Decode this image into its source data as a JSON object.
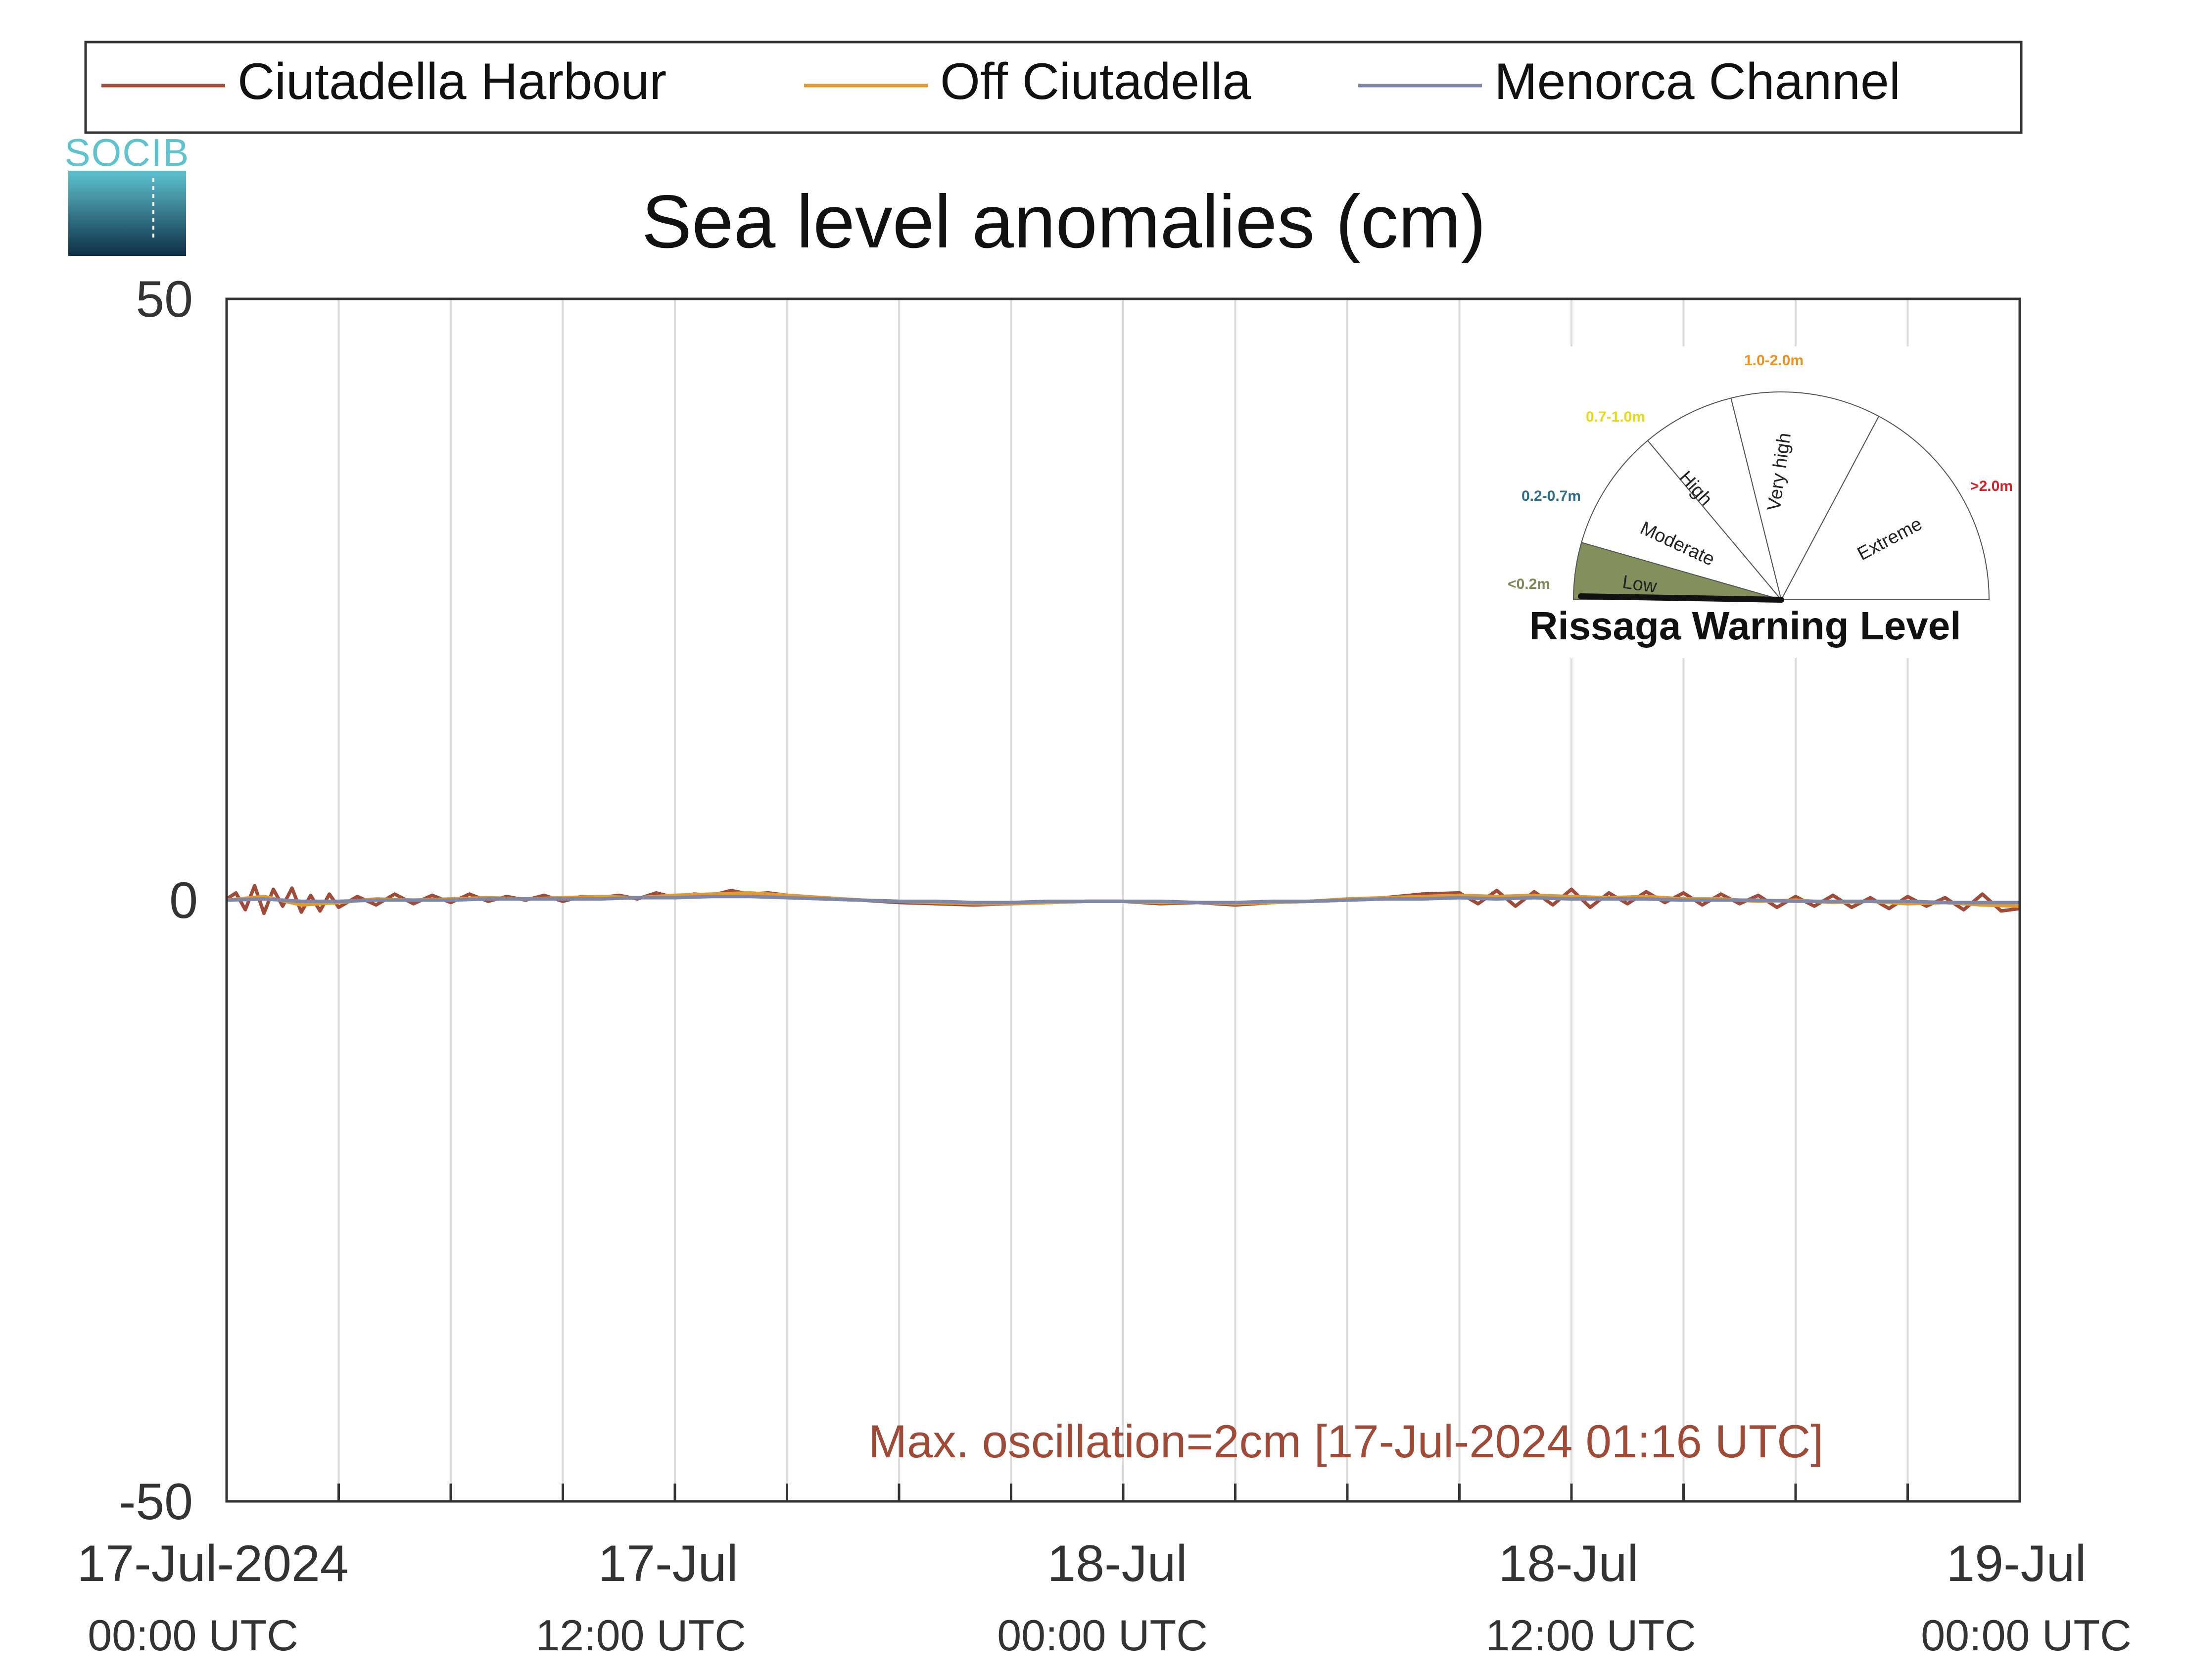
{
  "logo": {
    "text": "SOCIB"
  },
  "legend": {
    "items": [
      {
        "label": "Ciutadella Harbour",
        "color": "#a04a38"
      },
      {
        "label": "Off Ciutadella",
        "color": "#e09a30"
      },
      {
        "label": "Menorca Channel",
        "color": "#7f87a8"
      }
    ]
  },
  "annotation": {
    "text": "Max. oscillation=2cm [17-Jul-2024 01:16 UTC]",
    "color": "#a04a38"
  },
  "gauge": {
    "title": "Rissaga Warning Level",
    "current_level": "Low",
    "sectors": [
      {
        "name": "Low",
        "range": "<0.2m",
        "range_color": "#7f8a58",
        "fill": "#848f5e"
      },
      {
        "name": "Moderate",
        "range": "0.2-0.7m",
        "range_color": "#2d6e8e",
        "fill": "none"
      },
      {
        "name": "High",
        "range": "0.7-1.0m",
        "range_color": "#e8d81a",
        "fill": "none"
      },
      {
        "name": "Very high",
        "range": "1.0-2.0m",
        "range_color": "#ef8f1d",
        "fill": "none"
      },
      {
        "name": "Extreme",
        "range": ">2.0m",
        "range_color": "#d6202a",
        "fill": "none"
      }
    ]
  },
  "chart_data": {
    "type": "line",
    "title": "Sea level anomalies (cm)",
    "xlabel": "",
    "ylabel": "",
    "ylim": [
      -50,
      50
    ],
    "yticks": [
      50,
      0,
      -50
    ],
    "ytick_labels": [
      "50",
      "0",
      "-50"
    ],
    "xlim": [
      "2024-07-17 00:00",
      "2024-07-19 00:00"
    ],
    "x_grid_hours": [
      3,
      6,
      9,
      12,
      15,
      18,
      21,
      24,
      27,
      30,
      33,
      36,
      39,
      42,
      45
    ],
    "x_tick_labels": [
      {
        "hour": 0,
        "line1": "17-Jul-2024",
        "line2": "00:00 UTC"
      },
      {
        "hour": 12,
        "line1": "17-Jul",
        "line2": "12:00 UTC"
      },
      {
        "hour": 24,
        "line1": "18-Jul",
        "line2": "00:00 UTC"
      },
      {
        "hour": 36,
        "line1": "18-Jul",
        "line2": "12:00 UTC"
      },
      {
        "hour": 48,
        "line1": "19-Jul",
        "line2": "00:00 UTC"
      }
    ],
    "grid": true,
    "legend_position": "top",
    "series": [
      {
        "name": "Ciutadella Harbour",
        "color": "#a04a38",
        "x_hours": [
          0,
          0.25,
          0.5,
          0.75,
          1.0,
          1.25,
          1.5,
          1.75,
          2.0,
          2.25,
          2.5,
          2.75,
          3.0,
          3.5,
          4.0,
          4.5,
          5.0,
          5.5,
          6.0,
          6.5,
          7.0,
          7.5,
          8.0,
          8.5,
          9.0,
          9.5,
          10.0,
          10.5,
          11.0,
          11.5,
          12.0,
          12.5,
          13.0,
          13.5,
          14.0,
          14.5,
          15.0,
          15.5,
          16.0,
          17.0,
          18.0,
          19.0,
          20.0,
          21.0,
          22.0,
          23.0,
          24.0,
          25.0,
          26.0,
          27.0,
          28.0,
          29.0,
          30.0,
          31.0,
          32.0,
          33.0,
          33.5,
          34.0,
          34.5,
          35.0,
          35.5,
          36.0,
          36.5,
          37.0,
          37.5,
          38.0,
          38.5,
          39.0,
          39.5,
          40.0,
          40.5,
          41.0,
          41.5,
          42.0,
          42.5,
          43.0,
          43.5,
          44.0,
          44.5,
          45.0,
          45.5,
          46.0,
          46.5,
          47.0,
          47.5,
          48.0
        ],
        "y": [
          0.1,
          0.6,
          -0.8,
          1.2,
          -1.1,
          0.9,
          -0.5,
          1.0,
          -1.0,
          0.4,
          -0.9,
          0.5,
          -0.6,
          0.3,
          -0.4,
          0.5,
          -0.3,
          0.4,
          -0.2,
          0.5,
          -0.1,
          0.3,
          0.0,
          0.4,
          -0.1,
          0.3,
          0.2,
          0.4,
          0.1,
          0.6,
          0.2,
          0.5,
          0.4,
          0.8,
          0.5,
          0.6,
          0.4,
          0.3,
          0.1,
          0.0,
          -0.2,
          -0.3,
          -0.4,
          -0.3,
          -0.2,
          -0.1,
          -0.1,
          -0.3,
          -0.2,
          -0.4,
          -0.2,
          -0.1,
          0.0,
          0.2,
          0.5,
          0.6,
          -0.3,
          0.8,
          -0.5,
          0.7,
          -0.4,
          0.9,
          -0.6,
          0.6,
          -0.3,
          0.7,
          -0.2,
          0.6,
          -0.4,
          0.5,
          -0.3,
          0.4,
          -0.6,
          0.3,
          -0.5,
          0.4,
          -0.6,
          0.2,
          -0.7,
          0.3,
          -0.5,
          0.2,
          -0.8,
          0.5,
          -0.9,
          -0.7
        ]
      },
      {
        "name": "Off Ciutadella",
        "color": "#e09a30",
        "x_hours": [
          0,
          1,
          2,
          3,
          4,
          5,
          6,
          7,
          8,
          9,
          10,
          11,
          12,
          13,
          14,
          15,
          16,
          17,
          18,
          19,
          20,
          21,
          22,
          23,
          24,
          25,
          26,
          27,
          28,
          29,
          30,
          31,
          32,
          33,
          34,
          35,
          36,
          37,
          38,
          39,
          40,
          41,
          42,
          43,
          44,
          45,
          46,
          47,
          48
        ],
        "y": [
          0.0,
          0.3,
          -0.4,
          -0.2,
          0.1,
          0.0,
          0.1,
          0.2,
          0.1,
          0.2,
          0.3,
          0.2,
          0.4,
          0.5,
          0.6,
          0.4,
          0.2,
          0.0,
          -0.1,
          -0.2,
          -0.3,
          -0.3,
          -0.2,
          -0.1,
          -0.1,
          -0.2,
          -0.2,
          -0.3,
          -0.2,
          -0.1,
          0.1,
          0.2,
          0.3,
          0.4,
          0.3,
          0.4,
          0.3,
          0.2,
          0.3,
          0.1,
          0.1,
          -0.1,
          0.0,
          -0.2,
          -0.1,
          -0.3,
          -0.2,
          -0.4,
          -0.5
        ]
      },
      {
        "name": "Menorca Channel",
        "color": "#7f87a8",
        "x_hours": [
          0,
          1,
          2,
          3,
          4,
          5,
          6,
          7,
          8,
          9,
          10,
          11,
          12,
          13,
          14,
          15,
          16,
          17,
          18,
          19,
          20,
          21,
          22,
          23,
          24,
          25,
          26,
          27,
          28,
          29,
          30,
          31,
          32,
          33,
          34,
          35,
          36,
          37,
          38,
          39,
          40,
          41,
          42,
          43,
          44,
          45,
          46,
          47,
          48
        ],
        "y": [
          0.0,
          0.1,
          -0.1,
          -0.1,
          0.0,
          0.0,
          0.0,
          0.1,
          0.1,
          0.1,
          0.1,
          0.2,
          0.2,
          0.3,
          0.3,
          0.2,
          0.1,
          0.0,
          -0.1,
          -0.1,
          -0.2,
          -0.2,
          -0.1,
          -0.1,
          -0.1,
          -0.1,
          -0.2,
          -0.2,
          -0.1,
          -0.1,
          0.0,
          0.1,
          0.1,
          0.2,
          0.1,
          0.2,
          0.1,
          0.1,
          0.1,
          0.0,
          0.0,
          0.0,
          -0.1,
          -0.1,
          -0.1,
          -0.1,
          -0.2,
          -0.2,
          -0.2
        ]
      }
    ]
  }
}
